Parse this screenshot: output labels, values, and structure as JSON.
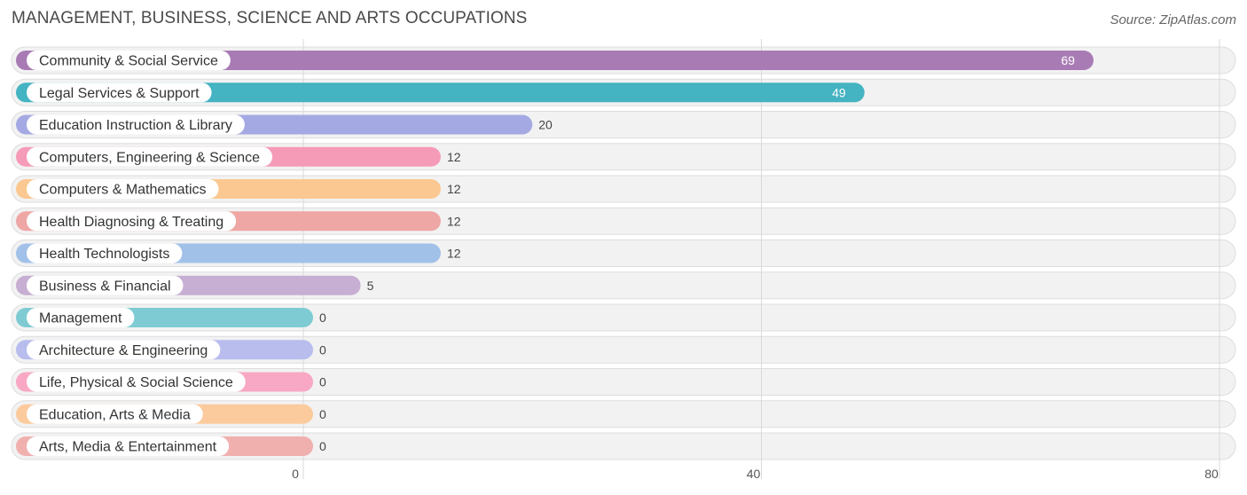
{
  "title": "MANAGEMENT, BUSINESS, SCIENCE AND ARTS OCCUPATIONS",
  "source": "Source: ZipAtlas.com",
  "chart_data": {
    "type": "bar",
    "orientation": "horizontal",
    "title": "MANAGEMENT, BUSINESS, SCIENCE AND ARTS OCCUPATIONS",
    "xlabel": "",
    "ylabel": "",
    "xlim": [
      0,
      80
    ],
    "x_ticks": [
      0,
      40,
      80
    ],
    "grid": true,
    "categories": [
      "Community & Social Service",
      "Legal Services & Support",
      "Education Instruction & Library",
      "Computers, Engineering & Science",
      "Computers & Mathematics",
      "Health Diagnosing & Treating",
      "Health Technologists",
      "Business & Financial",
      "Management",
      "Architecture & Engineering",
      "Life, Physical & Social Science",
      "Education, Arts & Media",
      "Arts, Media & Entertainment"
    ],
    "values": [
      69,
      49,
      20,
      12,
      12,
      12,
      12,
      5,
      0,
      0,
      0,
      0,
      0
    ],
    "colors": [
      "#a97bb5",
      "#44b3c2",
      "#a5a9e3",
      "#f59bb8",
      "#fbc891",
      "#eea7a5",
      "#a2c1e9",
      "#c7aed3",
      "#7fcbd3",
      "#b8bdee",
      "#f8a8c4",
      "#fbcb9d",
      "#f0b0ae"
    ]
  }
}
